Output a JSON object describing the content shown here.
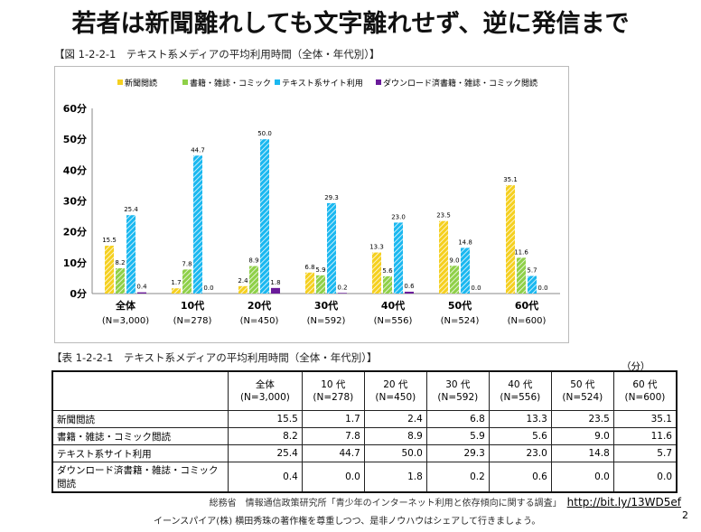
{
  "title": "若者は新聞離れしても文字離れせず、逆に発信まで",
  "figure_caption": "【図 1-2-2-1　テキスト系メディアの平均利用時間（全体・年代別）】",
  "table_caption": "【表 1-2-2-1　テキスト系メディアの平均利用時間（全体・年代別）】",
  "table_unit": "（分）",
  "chart_data": {
    "type": "bar",
    "categories": [
      [
        "全体",
        "(N=3,000)"
      ],
      [
        "10代",
        "(N=278)"
      ],
      [
        "20代",
        "(N=450)"
      ],
      [
        "30代",
        "(N=592)"
      ],
      [
        "40代",
        "(N=556)"
      ],
      [
        "50代",
        "(N=524)"
      ],
      [
        "60代",
        "(N=600)"
      ]
    ],
    "yticks": [
      "0分",
      "10分",
      "20分",
      "30分",
      "40分",
      "50分",
      "60分"
    ],
    "ylim": [
      0,
      60
    ],
    "legend_placement": "top",
    "series": [
      {
        "name": "新聞閲読",
        "color": "#f5d020",
        "values": [
          15.5,
          1.7,
          2.4,
          6.8,
          13.3,
          23.5,
          35.1
        ]
      },
      {
        "name": "書籍・雑誌・コミック",
        "color": "#8fd048",
        "values": [
          8.2,
          7.8,
          8.9,
          5.9,
          5.6,
          9.0,
          11.6
        ]
      },
      {
        "name": "テキスト系サイト利用",
        "color": "#1ab8f0",
        "values": [
          25.4,
          44.7,
          50.0,
          29.3,
          23.0,
          14.8,
          5.7
        ]
      },
      {
        "name": "ダウンロード済書籍・雑誌・コミック閲読",
        "color": "#6a1b9a",
        "values": [
          0.4,
          0.0,
          1.8,
          0.2,
          0.6,
          0.0,
          0.0
        ]
      }
    ]
  },
  "table": {
    "headers": [
      [
        "全体",
        "(N=3,000)"
      ],
      [
        "10 代",
        "(N=278)"
      ],
      [
        "20 代",
        "(N=450)"
      ],
      [
        "30 代",
        "(N=592)"
      ],
      [
        "40 代",
        "(N=556)"
      ],
      [
        "50 代",
        "(N=524)"
      ],
      [
        "60 代",
        "(N=600)"
      ]
    ],
    "rows": [
      {
        "label": "新聞閲読",
        "cells": [
          "15.5",
          "1.7",
          "2.4",
          "6.8",
          "13.3",
          "23.5",
          "35.1"
        ]
      },
      {
        "label": "書籍・雑誌・コミック閲読",
        "cells": [
          "8.2",
          "7.8",
          "8.9",
          "5.9",
          "5.6",
          "9.0",
          "11.6"
        ]
      },
      {
        "label": "テキスト系サイト利用",
        "cells": [
          "25.4",
          "44.7",
          "50.0",
          "29.3",
          "23.0",
          "14.8",
          "5.7"
        ]
      },
      {
        "label": "ダウンロード済書籍・雑誌・コミック閲読",
        "cells": [
          "0.4",
          "0.0",
          "1.8",
          "0.2",
          "0.6",
          "0.0",
          "0.0"
        ]
      }
    ]
  },
  "source": "総務省　情報通信政策研究所「青少年のインターネット利用と依存傾向に関する調査」",
  "source_link": "http://bit.ly/13WD5ef",
  "footer": "イーンスパイア(株) 横田秀珠の著作権を尊重しつつ、是非ノウハウはシェアして行きましょう。",
  "page_number": "2"
}
